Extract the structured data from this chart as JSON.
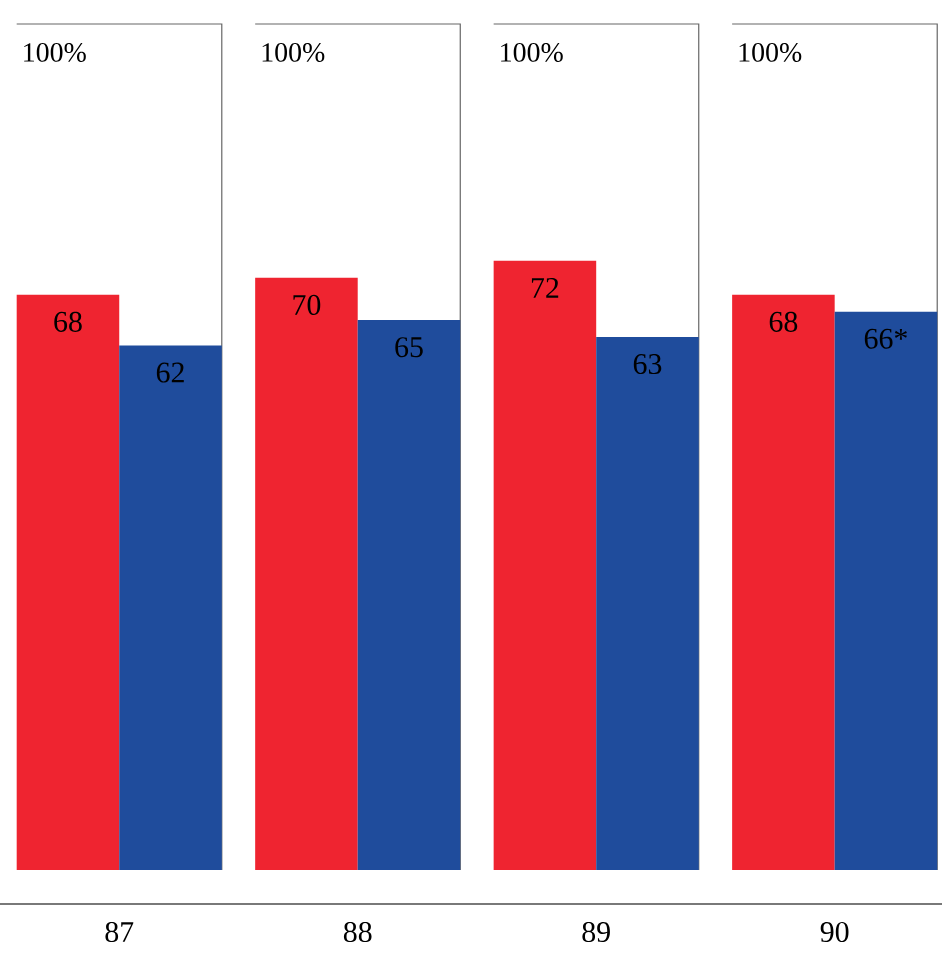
{
  "chart_data": {
    "type": "bar",
    "categories": [
      "87",
      "88",
      "89",
      "90"
    ],
    "ylim": [
      0,
      100
    ],
    "series": [
      {
        "color": "#ef2430",
        "values": [
          68,
          70,
          72,
          68
        ],
        "value_labels": [
          "68",
          "70",
          "72",
          "68"
        ]
      },
      {
        "color": "#1f4c9c",
        "values": [
          62,
          65,
          63,
          66
        ],
        "value_labels": [
          "62",
          "65",
          "63",
          "66*"
        ]
      }
    ],
    "annotations": [
      "100%",
      "100%",
      "100%",
      "100%"
    ]
  }
}
